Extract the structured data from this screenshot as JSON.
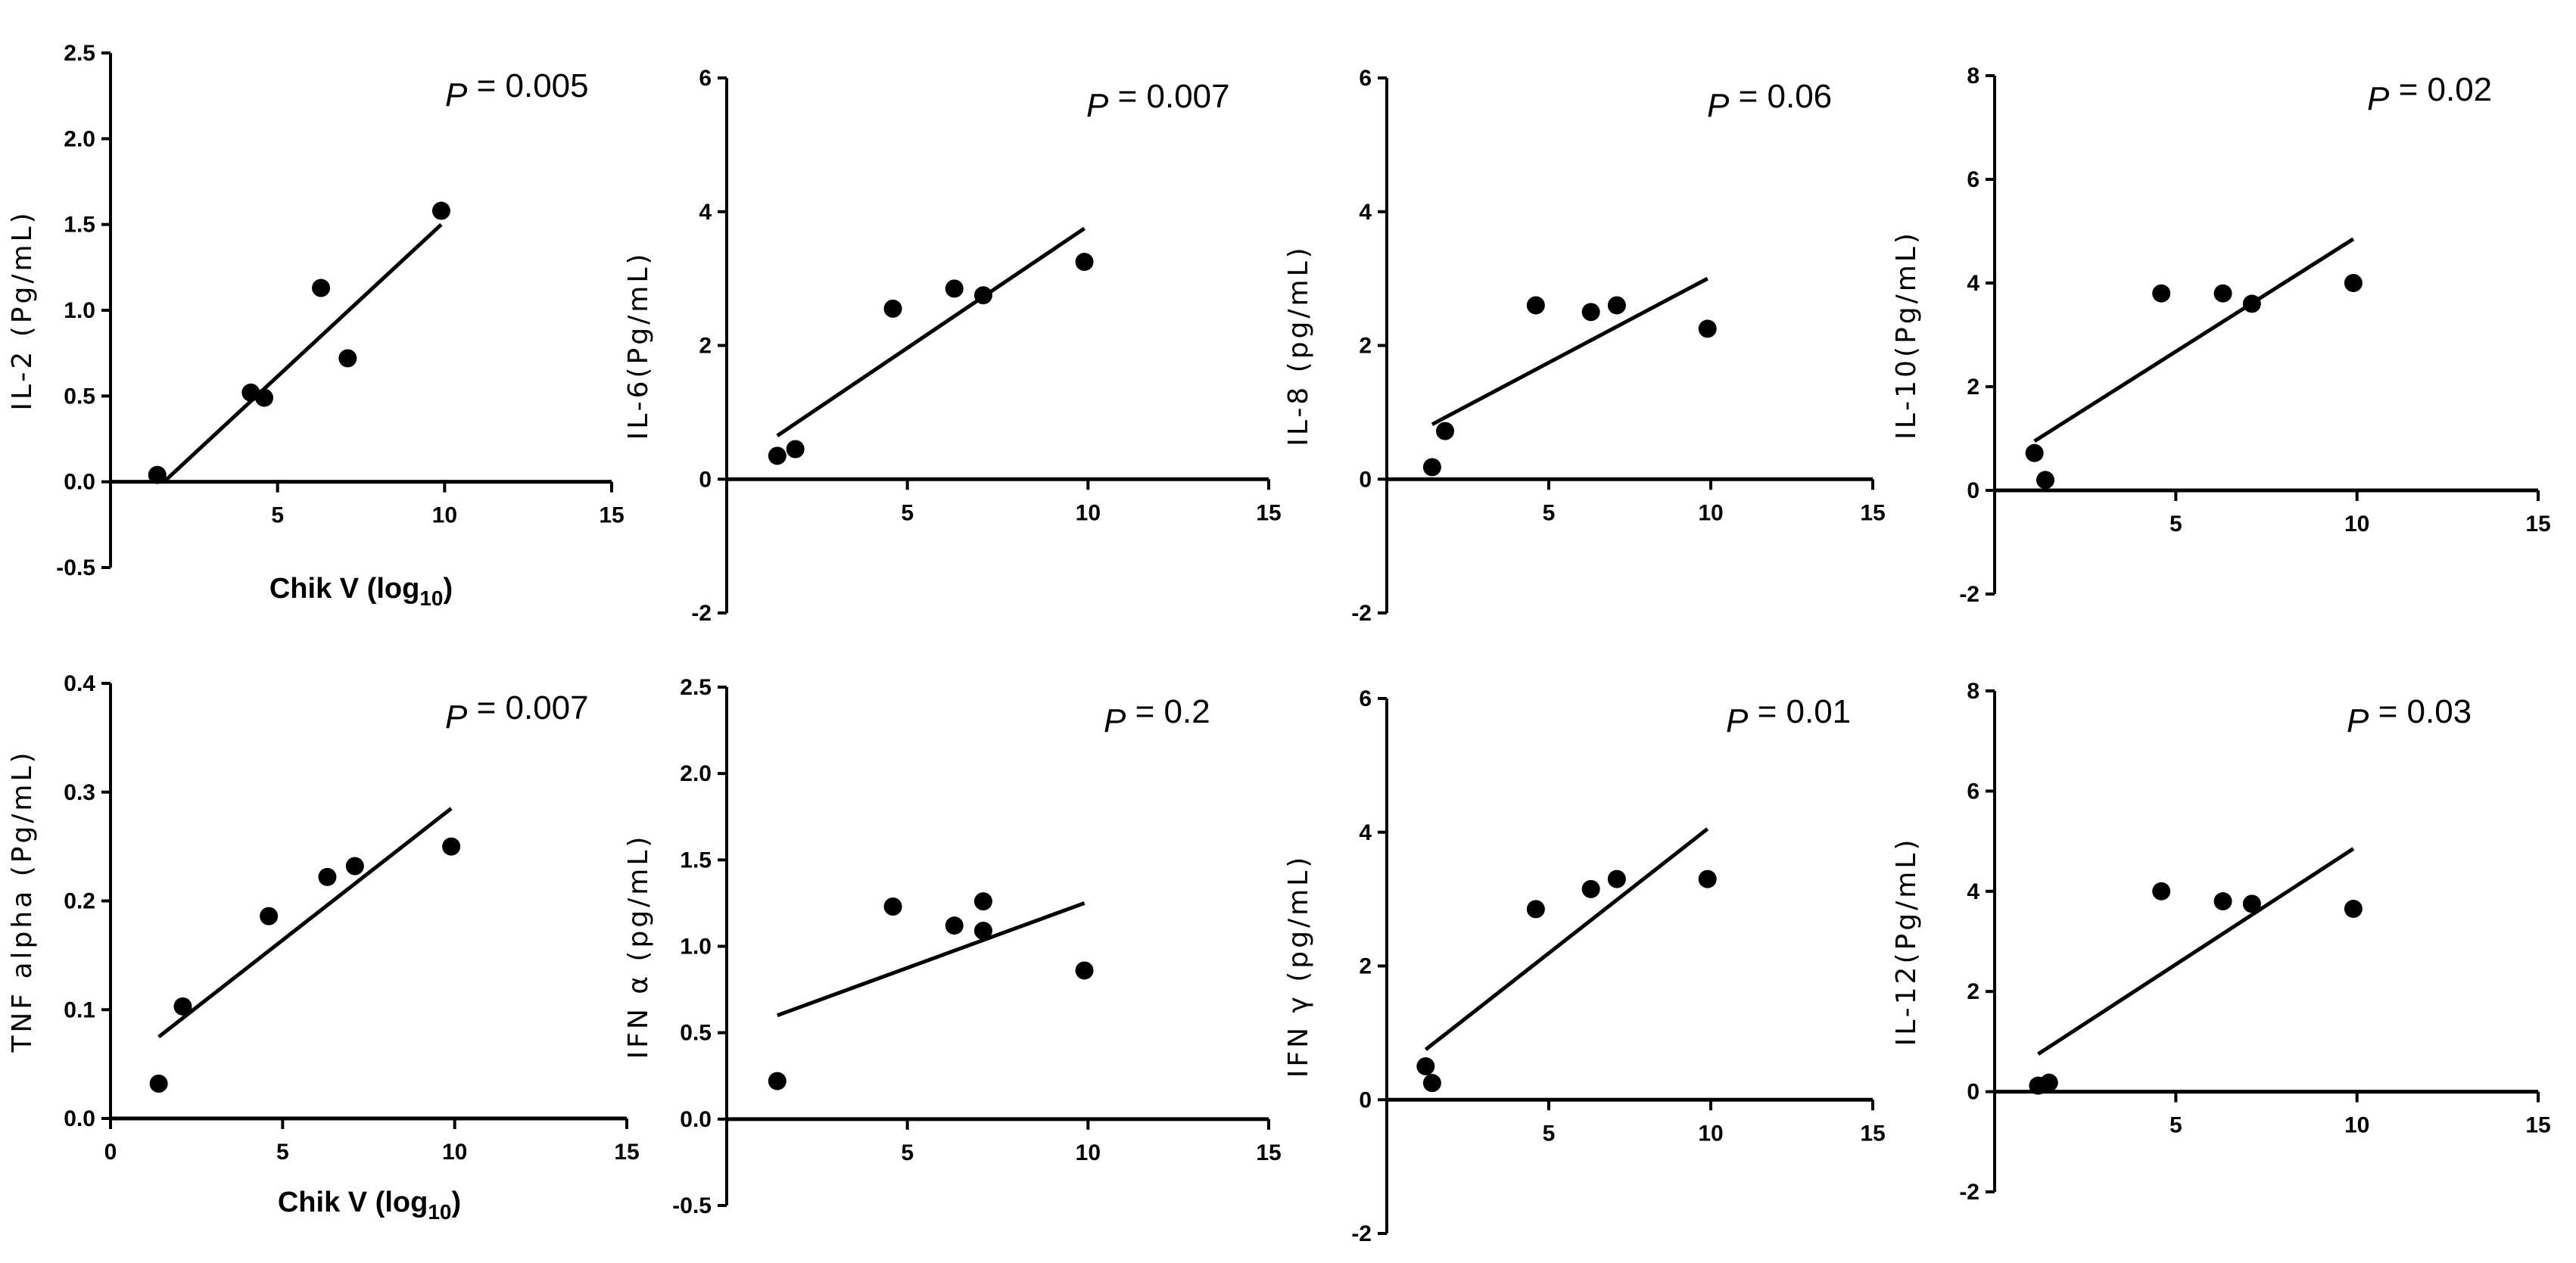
{
  "chart_data": [
    {
      "type": "scatter",
      "ylabel": "IL-2 (Pg/mL)",
      "xlabel": "Chik V (log",
      "xlabel_sub": "10",
      "xlabel_end": ")",
      "p_label": "P",
      "p_text": " = 0.005",
      "xlim": [
        0,
        15
      ],
      "ylim": [
        -0.5,
        2.5
      ],
      "xticks": [
        5,
        10,
        15
      ],
      "yticks": [
        -0.5,
        0.0,
        0.5,
        1.0,
        1.5,
        2.0,
        2.5
      ],
      "ytick_labels": [
        "-0.5",
        "0.0",
        "0.5",
        "1.0",
        "1.5",
        "2.0",
        "2.5"
      ],
      "points": [
        [
          1.4,
          0.04
        ],
        [
          4.2,
          0.52
        ],
        [
          4.6,
          0.49
        ],
        [
          6.3,
          1.13
        ],
        [
          7.1,
          0.72
        ],
        [
          9.9,
          1.58
        ]
      ],
      "fit": [
        [
          1.6,
          0.0
        ],
        [
          9.9,
          1.5
        ]
      ]
    },
    {
      "type": "scatter",
      "ylabel": "IL-6(Pg/mL)",
      "xlabel": "",
      "xlabel_sub": "",
      "xlabel_end": "",
      "p_label": "P",
      "p_text": " = 0.007",
      "xlim": [
        0,
        15
      ],
      "ylim": [
        -2,
        6
      ],
      "xticks": [
        5,
        10,
        15
      ],
      "yticks": [
        -2,
        0,
        2,
        4,
        6
      ],
      "ytick_labels": [
        "-2",
        "0",
        "2",
        "4",
        "6"
      ],
      "points": [
        [
          1.4,
          0.35
        ],
        [
          1.9,
          0.45
        ],
        [
          4.6,
          2.55
        ],
        [
          6.3,
          2.85
        ],
        [
          7.1,
          2.75
        ],
        [
          9.9,
          3.25
        ]
      ],
      "fit": [
        [
          1.4,
          0.65
        ],
        [
          9.9,
          3.75
        ]
      ]
    },
    {
      "type": "scatter",
      "ylabel": "IL-8 (pg/mL)",
      "xlabel": "",
      "xlabel_sub": "",
      "xlabel_end": "",
      "p_label": "P",
      "p_text": " = 0.06",
      "xlim": [
        0,
        15
      ],
      "ylim": [
        -2,
        6
      ],
      "xticks": [
        5,
        10,
        15
      ],
      "yticks": [
        -2,
        0,
        2,
        4,
        6
      ],
      "ytick_labels": [
        "-2",
        "0",
        "2",
        "4",
        "6"
      ],
      "points": [
        [
          1.4,
          0.18
        ],
        [
          1.8,
          0.72
        ],
        [
          4.6,
          2.6
        ],
        [
          6.3,
          2.5
        ],
        [
          7.1,
          2.6
        ],
        [
          9.9,
          2.25
        ]
      ],
      "fit": [
        [
          1.4,
          0.82
        ],
        [
          9.9,
          3.0
        ]
      ]
    },
    {
      "type": "scatter",
      "ylabel": "IL-10(Pg/mL)",
      "xlabel": "",
      "xlabel_sub": "",
      "xlabel_end": "",
      "p_label": "P",
      "p_text": " = 0.02",
      "xlim": [
        0,
        15
      ],
      "ylim": [
        -2,
        8
      ],
      "xticks": [
        5,
        10,
        15
      ],
      "yticks": [
        -2,
        0,
        2,
        4,
        6,
        8
      ],
      "ytick_labels": [
        "-2",
        "0",
        "2",
        "4",
        "6",
        "8"
      ],
      "points": [
        [
          1.1,
          0.72
        ],
        [
          1.4,
          0.2
        ],
        [
          4.6,
          3.8
        ],
        [
          6.3,
          3.8
        ],
        [
          7.1,
          3.6
        ],
        [
          9.9,
          4.0
        ]
      ],
      "fit": [
        [
          1.1,
          0.95
        ],
        [
          9.9,
          4.85
        ]
      ]
    },
    {
      "type": "scatter",
      "ylabel": "TNF alpha (Pg/mL)",
      "xlabel": "Chik V (log",
      "xlabel_sub": "10",
      "xlabel_end": ")",
      "p_label": "P",
      "p_text": " = 0.007",
      "xlim": [
        0,
        15
      ],
      "ylim": [
        0.0,
        0.4
      ],
      "xticks": [
        0,
        5,
        10,
        15
      ],
      "yticks": [
        0.0,
        0.1,
        0.2,
        0.3,
        0.4
      ],
      "ytick_labels": [
        "0.0",
        "0.1",
        "0.2",
        "0.3",
        "0.4"
      ],
      "points": [
        [
          1.4,
          0.032
        ],
        [
          2.1,
          0.103
        ],
        [
          4.6,
          0.186
        ],
        [
          6.3,
          0.222
        ],
        [
          7.1,
          0.232
        ],
        [
          9.9,
          0.25
        ]
      ],
      "fit": [
        [
          1.4,
          0.075
        ],
        [
          9.9,
          0.285
        ]
      ]
    },
    {
      "type": "scatter",
      "ylabel": "IFN α (pg/mL)",
      "xlabel": "",
      "xlabel_sub": "",
      "xlabel_end": "",
      "p_label": "P",
      "p_text": " = 0.2",
      "xlim": [
        0,
        15
      ],
      "ylim": [
        -0.5,
        2.5
      ],
      "xticks": [
        5,
        10,
        15
      ],
      "yticks": [
        -0.5,
        0.0,
        0.5,
        1.0,
        1.5,
        2.0,
        2.5
      ],
      "ytick_labels": [
        "-0.5",
        "0.0",
        "0.5",
        "1.0",
        "1.5",
        "2.0",
        "2.5"
      ],
      "points": [
        [
          1.4,
          0.22
        ],
        [
          4.6,
          1.23
        ],
        [
          6.3,
          1.12
        ],
        [
          7.1,
          1.26
        ],
        [
          7.1,
          1.09
        ],
        [
          9.9,
          0.86
        ]
      ],
      "fit": [
        [
          1.4,
          0.6
        ],
        [
          9.9,
          1.25
        ]
      ]
    },
    {
      "type": "scatter",
      "ylabel": "IFN γ (pg/mL)",
      "xlabel": "",
      "xlabel_sub": "",
      "xlabel_end": "",
      "p_label": "P",
      "p_text": " = 0.01",
      "xlim": [
        0,
        15
      ],
      "ylim": [
        -2,
        6
      ],
      "xticks": [
        5,
        10,
        15
      ],
      "yticks": [
        -2,
        0,
        2,
        4,
        6
      ],
      "ytick_labels": [
        "-2",
        "0",
        "2",
        "4",
        "6"
      ],
      "points": [
        [
          1.2,
          0.5
        ],
        [
          1.4,
          0.25
        ],
        [
          4.6,
          2.85
        ],
        [
          6.3,
          3.15
        ],
        [
          7.1,
          3.3
        ],
        [
          9.9,
          3.3
        ]
      ],
      "fit": [
        [
          1.2,
          0.75
        ],
        [
          9.9,
          4.05
        ]
      ]
    },
    {
      "type": "scatter",
      "ylabel": "IL-12(Pg/mL)",
      "xlabel": "",
      "xlabel_sub": "",
      "xlabel_end": "",
      "p_label": "P",
      "p_text": " = 0.03",
      "xlim": [
        0,
        15
      ],
      "ylim": [
        -2,
        8
      ],
      "xticks": [
        5,
        10,
        15
      ],
      "yticks": [
        -2,
        0,
        2,
        4,
        6,
        8
      ],
      "ytick_labels": [
        "-2",
        "0",
        "2",
        "4",
        "6",
        "8"
      ],
      "points": [
        [
          1.2,
          0.12
        ],
        [
          1.5,
          0.18
        ],
        [
          4.6,
          4.0
        ],
        [
          6.3,
          3.8
        ],
        [
          7.1,
          3.75
        ],
        [
          9.9,
          3.65
        ]
      ],
      "fit": [
        [
          1.2,
          0.75
        ],
        [
          9.9,
          4.85
        ]
      ]
    }
  ]
}
